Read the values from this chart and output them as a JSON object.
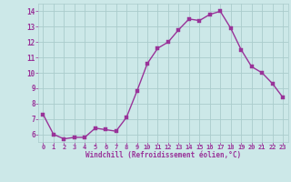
{
  "x": [
    0,
    1,
    2,
    3,
    4,
    5,
    6,
    7,
    8,
    9,
    10,
    11,
    12,
    13,
    14,
    15,
    16,
    17,
    18,
    19,
    20,
    21,
    22,
    23
  ],
  "y": [
    7.3,
    6.0,
    5.7,
    5.8,
    5.8,
    6.4,
    6.3,
    6.2,
    7.1,
    8.8,
    10.6,
    11.6,
    12.0,
    12.8,
    13.5,
    13.4,
    13.8,
    14.0,
    12.9,
    11.5,
    10.4,
    10.0,
    9.3,
    8.4
  ],
  "line_color": "#993399",
  "marker_color": "#993399",
  "bg_color": "#cce8e8",
  "grid_color": "#aacccc",
  "xlabel": "Windchill (Refroidissement éolien,°C)",
  "xlabel_color": "#993399",
  "tick_color": "#993399",
  "ylim": [
    5.5,
    14.5
  ],
  "xlim": [
    -0.5,
    23.5
  ],
  "yticks": [
    6,
    7,
    8,
    9,
    10,
    11,
    12,
    13,
    14
  ],
  "xticks": [
    0,
    1,
    2,
    3,
    4,
    5,
    6,
    7,
    8,
    9,
    10,
    11,
    12,
    13,
    14,
    15,
    16,
    17,
    18,
    19,
    20,
    21,
    22,
    23
  ],
  "xtick_labels": [
    "0",
    "1",
    "2",
    "3",
    "4",
    "5",
    "6",
    "7",
    "8",
    "9",
    "10",
    "11",
    "12",
    "13",
    "14",
    "15",
    "16",
    "17",
    "18",
    "19",
    "20",
    "21",
    "22",
    "23"
  ],
  "ytick_labels": [
    "6",
    "7",
    "8",
    "9",
    "10",
    "11",
    "12",
    "13",
    "14"
  ],
  "marker_size": 2.5,
  "line_width": 1.0
}
